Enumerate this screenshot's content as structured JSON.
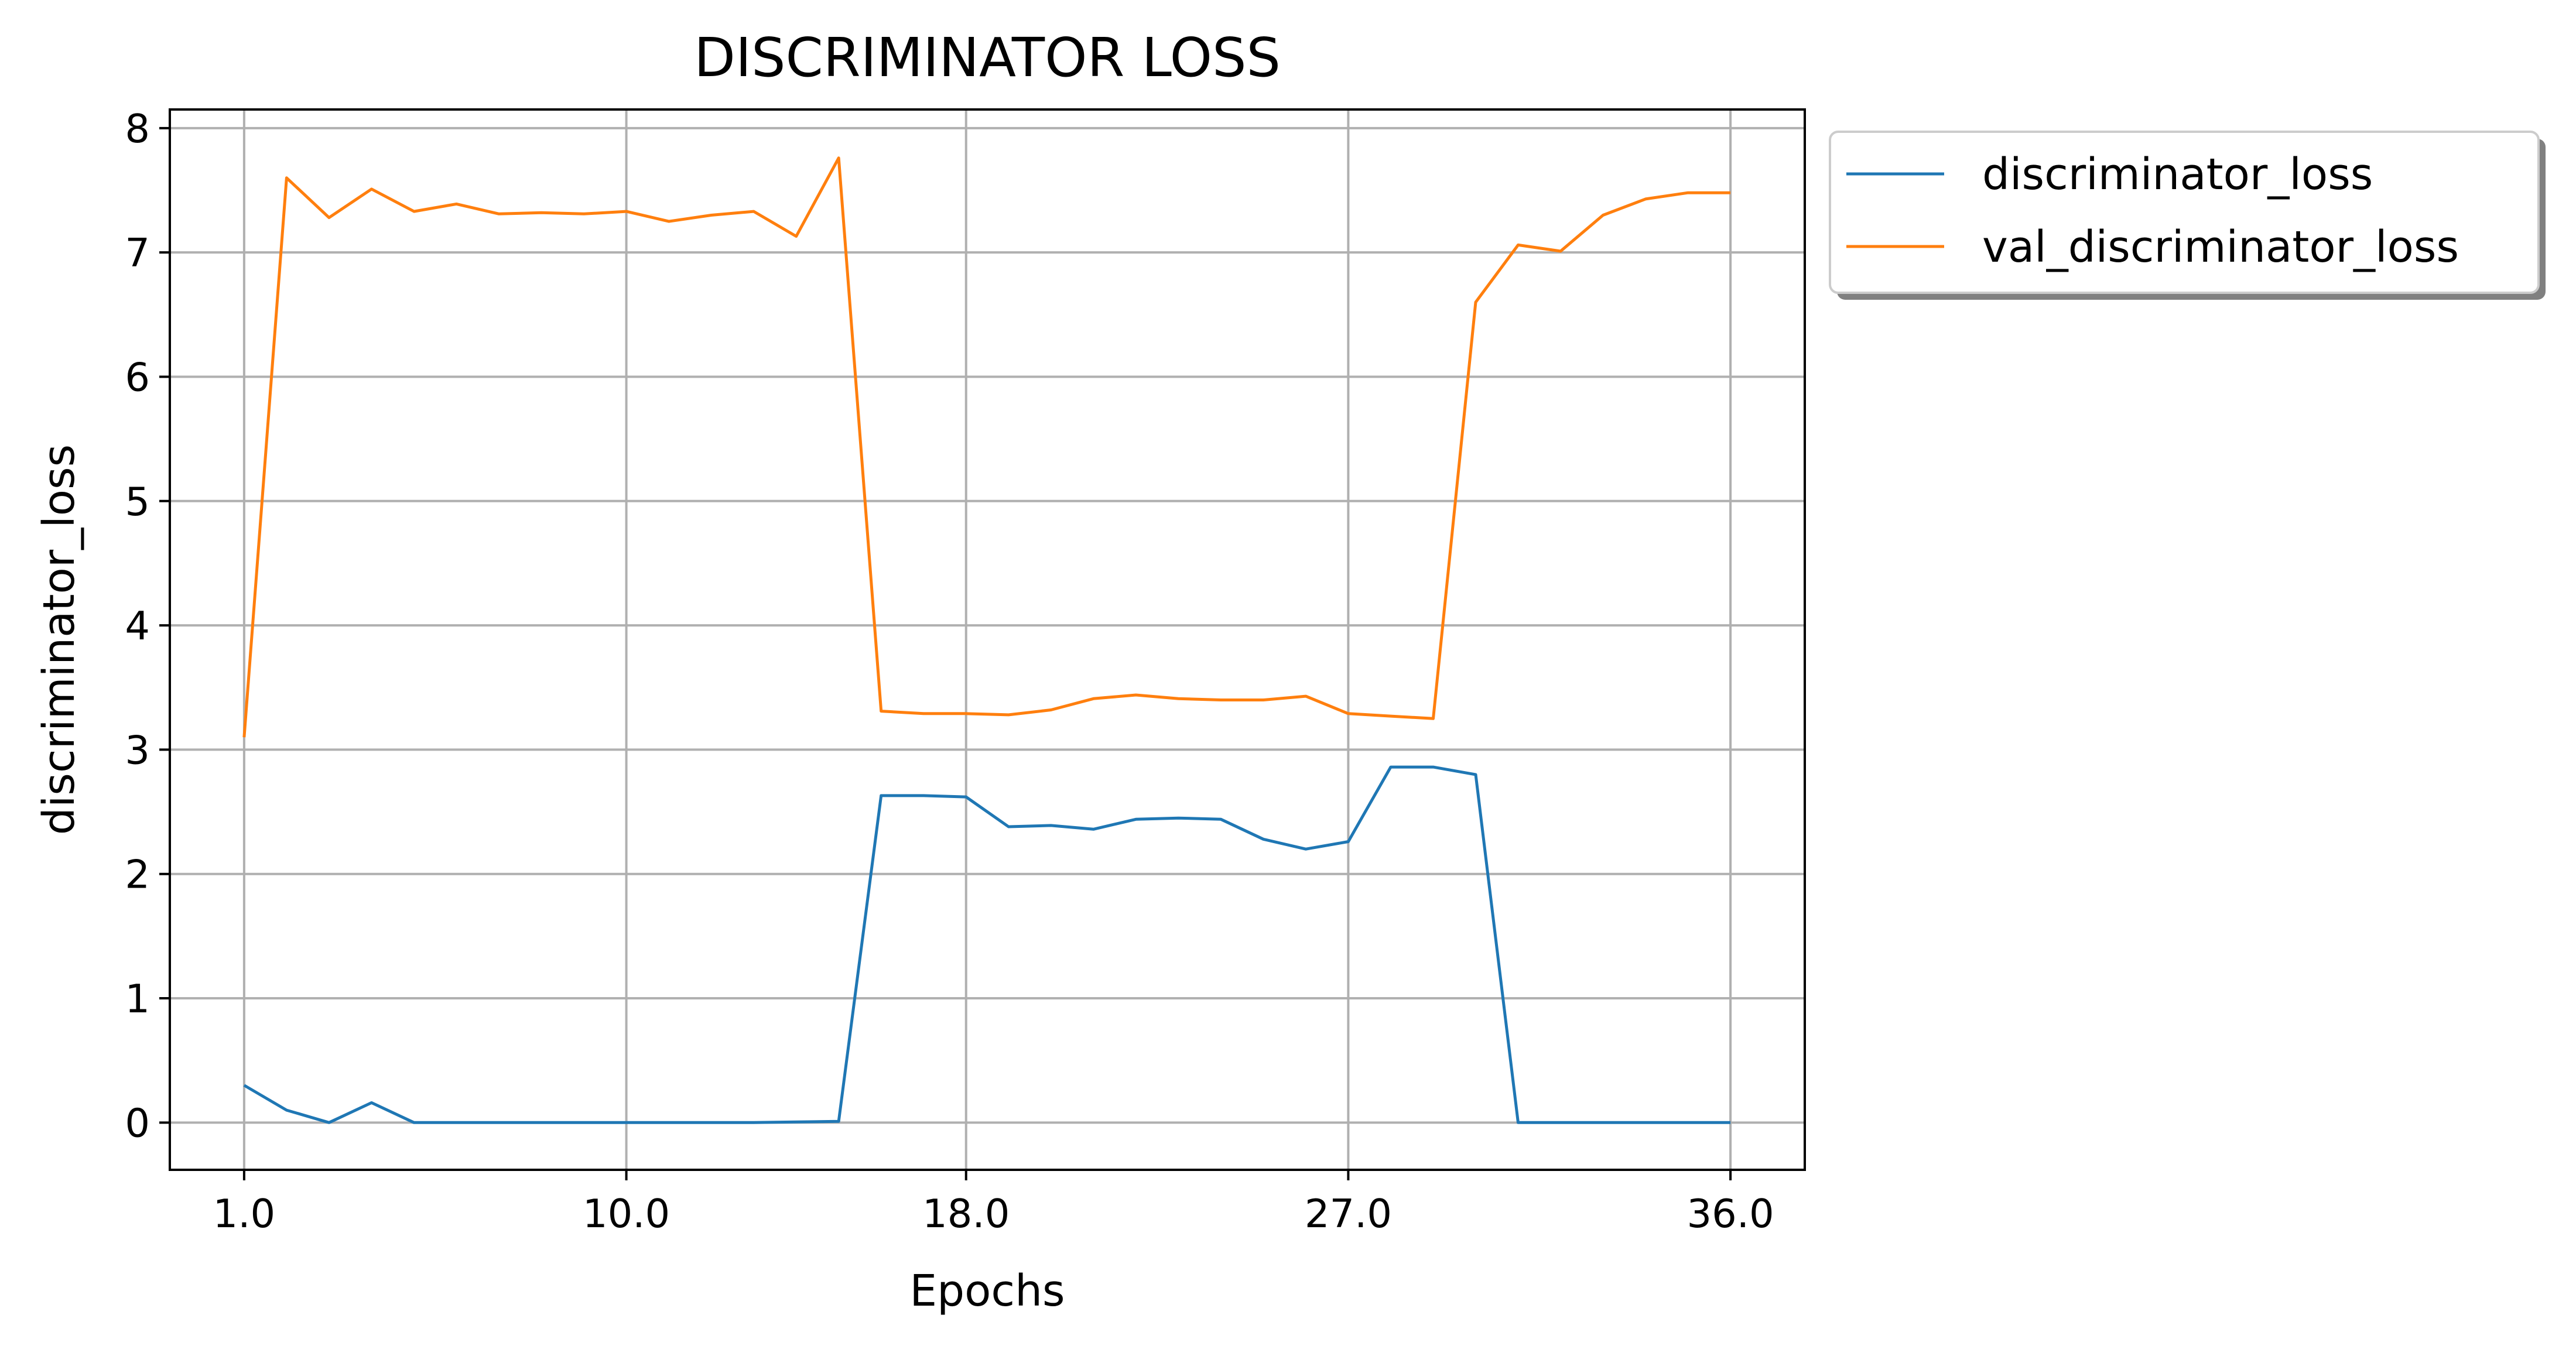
{
  "chart_data": {
    "type": "line",
    "title": "DISCRIMINATOR LOSS",
    "xlabel": "Epochs",
    "ylabel": "discriminator_loss",
    "x_tick_labels": [
      "1.0",
      "10.0",
      "18.0",
      "27.0",
      "36.0"
    ],
    "x_tick_positions": [
      1,
      10,
      18,
      27,
      36
    ],
    "y_ticks": [
      "0",
      "1",
      "2",
      "3",
      "4",
      "5",
      "6",
      "7",
      "8"
    ],
    "xlim": [
      -0.75,
      37.75
    ],
    "ylim": [
      -0.38,
      8.15
    ],
    "grid": true,
    "legend_position": "outside-top-right",
    "x": [
      1,
      2,
      3,
      4,
      5,
      6,
      7,
      8,
      9,
      10,
      11,
      12,
      13,
      14,
      15,
      16,
      17,
      18,
      19,
      20,
      21,
      22,
      23,
      24,
      25,
      26,
      27,
      28,
      29,
      30,
      31,
      32,
      33,
      34,
      35,
      36
    ],
    "series": [
      {
        "name": "discriminator_loss",
        "color": "#1f77b4",
        "values": [
          0.3,
          0.1,
          0.0,
          0.16,
          0.0,
          0.0,
          0.0,
          0.0,
          0.0,
          0.0,
          0.0,
          0.0,
          0.0,
          0.005,
          0.01,
          2.63,
          2.63,
          2.62,
          2.38,
          2.39,
          2.36,
          2.44,
          2.45,
          2.44,
          2.28,
          2.2,
          2.26,
          2.86,
          2.86,
          2.8,
          0.0,
          0.0,
          0.0,
          0.0,
          0.0,
          0.0
        ]
      },
      {
        "name": "val_discriminator_loss",
        "color": "#ff7f0e",
        "values": [
          3.1,
          7.6,
          7.28,
          7.51,
          7.33,
          7.39,
          7.31,
          7.32,
          7.31,
          7.33,
          7.25,
          7.3,
          7.33,
          7.13,
          7.76,
          3.31,
          3.29,
          3.29,
          3.28,
          3.32,
          3.41,
          3.44,
          3.41,
          3.4,
          3.4,
          3.43,
          3.29,
          3.27,
          3.25,
          6.6,
          7.06,
          7.01,
          7.3,
          7.43,
          7.48,
          7.48
        ]
      }
    ]
  }
}
